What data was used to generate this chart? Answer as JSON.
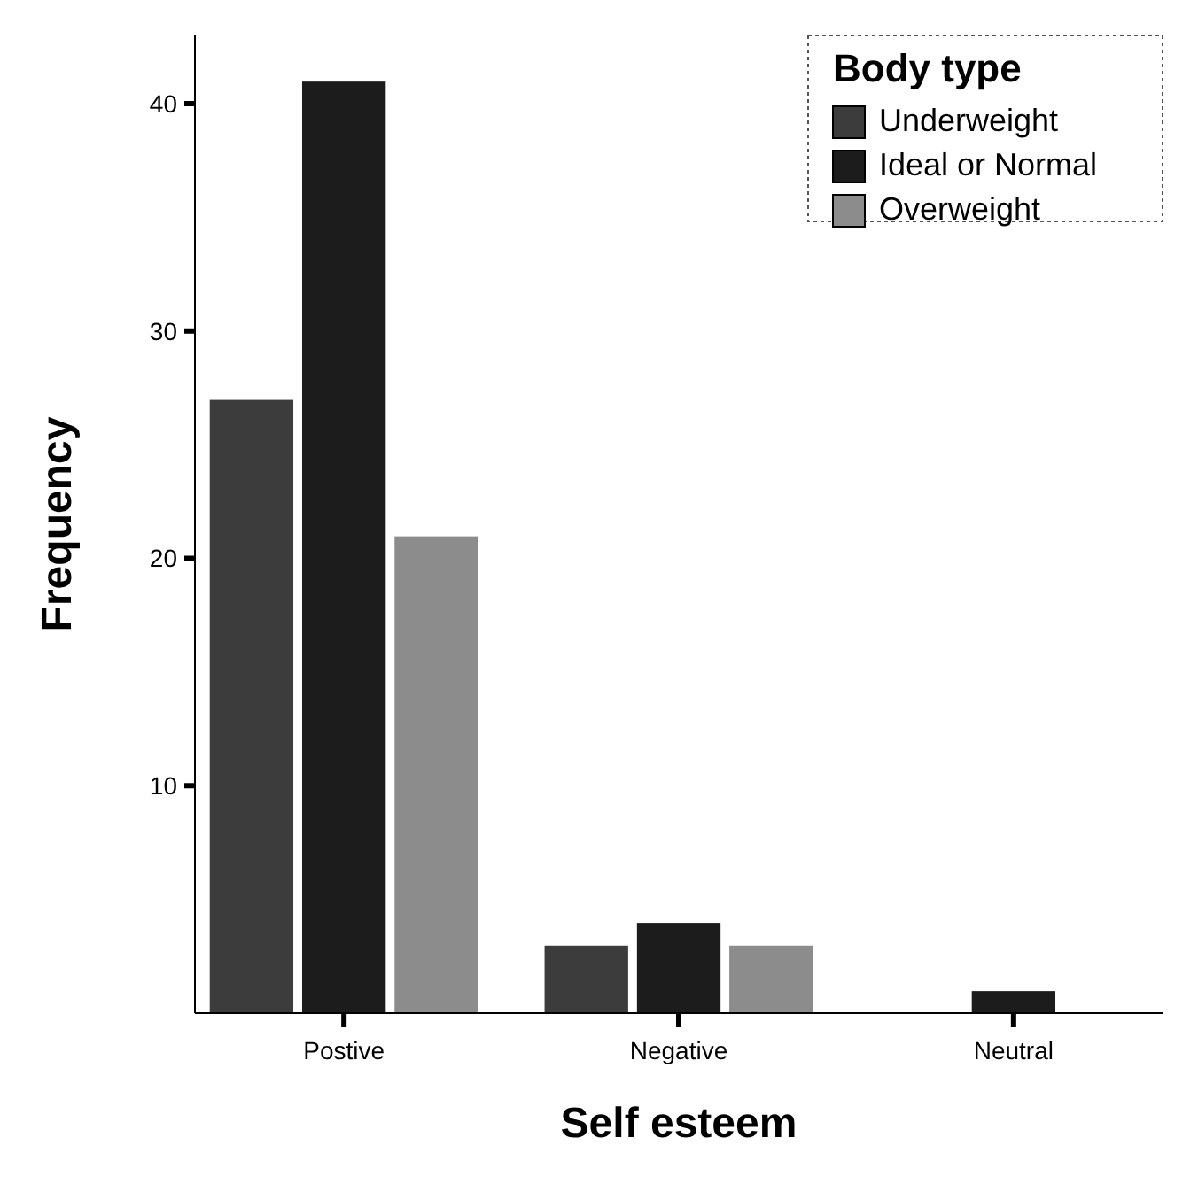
{
  "chart_data": {
    "type": "bar",
    "xlabel": "Self esteem",
    "ylabel": "Frequency",
    "legend_title": "Body type",
    "categories": [
      "Postive",
      "Negative",
      "Neutral"
    ],
    "series": [
      {
        "name": "Underweight",
        "color": "#3c3c3c",
        "values": [
          27,
          3,
          0
        ]
      },
      {
        "name": "Ideal or Normal",
        "color": "#1c1c1c",
        "values": [
          41,
          4,
          1
        ]
      },
      {
        "name": "Overweight",
        "color": "#8c8c8c",
        "values": [
          21,
          3,
          0
        ]
      }
    ],
    "ylim": [
      0,
      43
    ],
    "yticks": [
      10,
      20,
      30,
      40
    ],
    "grid": false,
    "legend": "top right"
  }
}
